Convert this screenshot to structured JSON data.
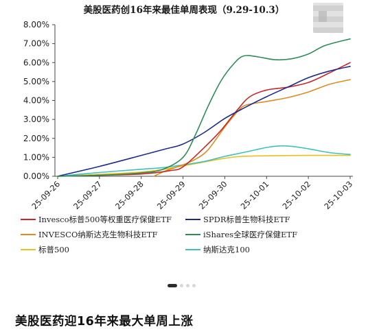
{
  "chart_data": {
    "type": "line",
    "title": "美股医药创16年来最佳单周表现（9.29-10.3）",
    "x_ticks": [
      "25-09-26",
      "25-09-27",
      "25-09-28",
      "25-09-29",
      "25-09-30",
      "25-10-01",
      "25-10-02",
      "25-10-03"
    ],
    "y_ticks": [
      "0.00%",
      "1.00%",
      "2.00%",
      "3.00%",
      "4.00%",
      "5.00%",
      "6.00%",
      "7.00%",
      "8.00%"
    ],
    "ylim": [
      0,
      8
    ],
    "xlim": [
      0,
      7
    ],
    "grid": false,
    "legend_position": "bottom",
    "series": [
      {
        "name": "Invesco标普500等权重医疗保健ETF",
        "color": "#c62828",
        "points": [
          [
            0,
            0
          ],
          [
            1,
            0.05
          ],
          [
            2,
            0.12
          ],
          [
            2.7,
            0.3
          ],
          [
            3,
            0.5
          ],
          [
            3.5,
            1.5
          ],
          [
            3.9,
            2.4
          ],
          [
            4.3,
            3.5
          ],
          [
            4.6,
            4.2
          ],
          [
            5,
            4.55
          ],
          [
            5.5,
            4.7
          ],
          [
            6,
            4.95
          ],
          [
            6.5,
            5.45
          ],
          [
            7,
            6.0
          ]
        ]
      },
      {
        "name": "SPDR标普生物科技ETF",
        "color": "#1a2a8c",
        "points": [
          [
            0,
            0
          ],
          [
            1,
            0.52
          ],
          [
            2,
            1.1
          ],
          [
            2.6,
            1.45
          ],
          [
            3,
            1.7
          ],
          [
            3.5,
            2.3
          ],
          [
            4,
            3.05
          ],
          [
            4.5,
            3.65
          ],
          [
            5,
            4.2
          ],
          [
            5.5,
            4.7
          ],
          [
            6,
            5.2
          ],
          [
            6.5,
            5.55
          ],
          [
            7,
            5.8
          ]
        ]
      },
      {
        "name": "INVESCO纳斯达克生物科技ETF",
        "color": "#e08a1e",
        "points": [
          [
            2.3,
            0
          ],
          [
            2.6,
            0.3
          ],
          [
            3,
            0.6
          ],
          [
            3.3,
            0.9
          ],
          [
            3.6,
            1.4
          ],
          [
            4,
            2.6
          ],
          [
            4.3,
            3.4
          ],
          [
            4.5,
            3.75
          ],
          [
            5,
            3.95
          ],
          [
            5.5,
            4.15
          ],
          [
            6,
            4.45
          ],
          [
            6.5,
            4.85
          ],
          [
            7,
            5.1
          ]
        ]
      },
      {
        "name": "iShares全球医疗保健ETF",
        "color": "#2e8b57",
        "points": [
          [
            0,
            0
          ],
          [
            1,
            0.05
          ],
          [
            1.5,
            0.1
          ],
          [
            2,
            0.18
          ],
          [
            2.5,
            0.35
          ],
          [
            3,
            1.0
          ],
          [
            3.3,
            2.2
          ],
          [
            3.6,
            3.7
          ],
          [
            3.9,
            5.0
          ],
          [
            4.2,
            5.9
          ],
          [
            4.45,
            6.35
          ],
          [
            4.8,
            6.3
          ],
          [
            5.2,
            6.15
          ],
          [
            5.6,
            6.2
          ],
          [
            6,
            6.45
          ],
          [
            6.4,
            6.9
          ],
          [
            7,
            7.25
          ]
        ]
      },
      {
        "name": "标普500",
        "color": "#e8c020",
        "points": [
          [
            0,
            0
          ],
          [
            1,
            0.1
          ],
          [
            2,
            0.22
          ],
          [
            2.5,
            0.35
          ],
          [
            3,
            0.55
          ],
          [
            3.5,
            0.75
          ],
          [
            4,
            0.95
          ],
          [
            4.4,
            1.05
          ],
          [
            5,
            1.08
          ],
          [
            6,
            1.1
          ],
          [
            7,
            1.1
          ]
        ]
      },
      {
        "name": "纳斯达克100",
        "color": "#3fbfbf",
        "points": [
          [
            0,
            0
          ],
          [
            1,
            0.2
          ],
          [
            2,
            0.37
          ],
          [
            2.5,
            0.45
          ],
          [
            3,
            0.6
          ],
          [
            3.5,
            0.78
          ],
          [
            4,
            1.05
          ],
          [
            4.5,
            1.28
          ],
          [
            5,
            1.52
          ],
          [
            5.3,
            1.6
          ],
          [
            5.6,
            1.58
          ],
          [
            6,
            1.45
          ],
          [
            6.5,
            1.25
          ],
          [
            7,
            1.15
          ]
        ]
      }
    ]
  },
  "pager": {
    "count": 4,
    "active": 0
  },
  "headline": "美股医药迎16年来最大单周上涨"
}
